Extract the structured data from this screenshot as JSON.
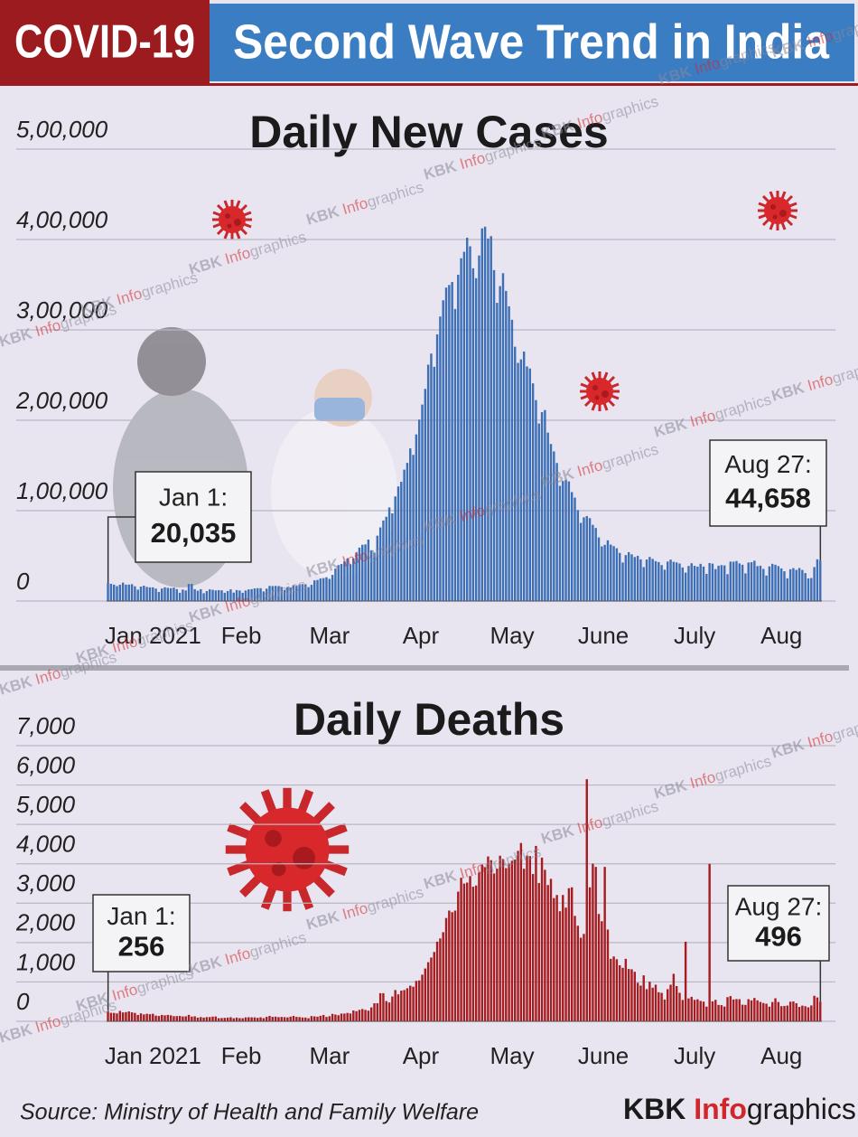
{
  "header": {
    "tag": "COVID-19",
    "title": "Second Wave Trend in India"
  },
  "chart_data": [
    {
      "type": "bar",
      "title": "Daily New Cases",
      "color": "#3d6fb6",
      "grid": true,
      "ylim": [
        0,
        500000
      ],
      "yticks": [
        0,
        {
          "value": 100000,
          "label": "1,00,000"
        },
        {
          "value": 200000,
          "label": "2,00,000"
        },
        {
          "value": 300000,
          "label": "3,00,000"
        },
        {
          "value": 400000,
          "label": "4,00,000"
        },
        {
          "value": 500000,
          "label": "5,00,000"
        }
      ],
      "categories": [
        "Jan 2021",
        null,
        null,
        null,
        null,
        null,
        null,
        null,
        null,
        null,
        null,
        null,
        null,
        null,
        null,
        null,
        null,
        null,
        null,
        null,
        null,
        null,
        null,
        null,
        null,
        null,
        null,
        null,
        null,
        null,
        null,
        "Feb",
        null,
        null,
        null,
        null,
        null,
        null,
        null,
        null,
        null,
        null,
        null,
        null,
        null,
        null,
        null,
        null,
        null,
        null,
        null,
        null,
        null,
        null,
        null,
        null,
        null,
        null,
        null,
        "Mar",
        null,
        null,
        null,
        null,
        null,
        null,
        null,
        null,
        null,
        null,
        null,
        null,
        null,
        null,
        null,
        null,
        null,
        null,
        null,
        null,
        null,
        null,
        null,
        null,
        null,
        null,
        null,
        null,
        null,
        null,
        "Apr",
        null,
        null,
        null,
        null,
        null,
        null,
        null,
        null,
        null,
        null,
        null,
        null,
        null,
        null,
        null,
        null,
        null,
        null,
        null,
        null,
        null,
        null,
        null,
        null,
        null,
        null,
        null,
        null,
        null,
        "May",
        null,
        null,
        null,
        null,
        null,
        null,
        null,
        null,
        null,
        null,
        null,
        null,
        null,
        null,
        null,
        null,
        null,
        null,
        null,
        null,
        null,
        null,
        null,
        null,
        null,
        null,
        null,
        null,
        null,
        null,
        "June",
        null,
        null,
        null,
        null,
        null,
        null,
        null,
        null,
        null,
        null,
        null,
        null,
        null,
        null,
        null,
        null,
        null,
        null,
        null,
        null,
        null,
        null,
        null,
        null,
        null,
        null,
        null,
        null,
        null,
        "July",
        null,
        null,
        null,
        null,
        null,
        null,
        null,
        null,
        null,
        null,
        null,
        null,
        null,
        null,
        null,
        null,
        null,
        null,
        null,
        null,
        null,
        null,
        null,
        null,
        null,
        null,
        null,
        null,
        null,
        null,
        "Aug",
        null,
        null,
        null,
        null,
        null,
        null,
        null,
        null,
        null,
        null,
        null,
        null,
        null,
        null,
        null,
        null,
        null,
        null,
        null,
        null,
        null,
        null,
        null,
        null,
        null,
        null
      ],
      "values": [
        20035,
        19078,
        18177,
        16504,
        18088,
        20346,
        18139,
        18222,
        18645,
        16311,
        12584,
        15968,
        16946,
        15590,
        15158,
        15144,
        13788,
        10064,
        13823,
        15223,
        14545,
        14256,
        14849,
        13203,
        9102,
        12689,
        11666,
        18855,
        18855,
        13083,
        11427,
        13052,
        8635,
        11039,
        12899,
        12408,
        11713,
        12059,
        11831,
        9110,
        11067,
        12923,
        9309,
        12143,
        11649,
        9121,
        11610,
        12881,
        13193,
        13993,
        14264,
        14199,
        10584,
        13742,
        16738,
        16577,
        16752,
        16488,
        15510,
        12286,
        15510,
        14989,
        17407,
        16838,
        18327,
        18711,
        18599,
        15388,
        17921,
        22854,
        23285,
        24882,
        25320,
        26291,
        24492,
        28903,
        35871,
        39726,
        40953,
        43846,
        46951,
        40715,
        47262,
        53476,
        59118,
        62258,
        62714,
        68020,
        56211,
        53480,
        72330,
        81466,
        89129,
        93249,
        103558,
        96982,
        115736,
        126789,
        131968,
        145384,
        152879,
        168912,
        161736,
        184372,
        200739,
        217353,
        234692,
        261500,
        273810,
        259170,
        295041,
        314835,
        332730,
        346786,
        349691,
        352991,
        323144,
        360960,
        379257,
        386452,
        401993,
        392488,
        368147,
        357229,
        382315,
        412262,
        414188,
        401078,
        403738,
        366161,
        329942,
        348421,
        362727,
        343144,
        326098,
        311170,
        281386,
        263533,
        267334,
        276070,
        259551,
        257299,
        240842,
        222315,
        196427,
        208921,
        211298,
        186364,
        173790,
        165553,
        152734,
        127510,
        132788,
        134154,
        132364,
        120529,
        114460,
        100636,
        86498,
        92596,
        94052,
        91702,
        84332,
        80834,
        70421,
        60471,
        62224,
        67208,
        62480,
        60753,
        58419,
        53256,
        42640,
        50848,
        54069,
        51667,
        48698,
        50040,
        46148,
        37566,
        45951,
        48786,
        46617,
        44111,
        43071,
        39796,
        34703,
        43733,
        45892,
        43393,
        42766,
        41506,
        37154,
        31443,
        38792,
        41806,
        38949,
        38079,
        41157,
        38164,
        30093,
        42015,
        41383,
        35342,
        39097,
        39742,
        39361,
        29689,
        43654,
        43509,
        44230,
        41649,
        40134,
        30549,
        42625,
        42982,
        44643,
        38628,
        39070,
        35499,
        28204,
        38353,
        41195,
        40120,
        38667,
        36083,
        32937,
        25166,
        35178,
        36401,
        34457,
        36571,
        34457,
        30948,
        25072,
        25467,
        37593,
        46164,
        44658
      ],
      "annotations": [
        {
          "date": "Jan 1:",
          "value_label": "20,035"
        },
        {
          "date": "Aug 27:",
          "value_label": "44,658"
        }
      ]
    },
    {
      "type": "bar",
      "title": "Daily Deaths",
      "color": "#a51d20",
      "grid": true,
      "ylim": [
        0,
        7000
      ],
      "yticks": [
        0,
        {
          "value": 1000,
          "label": "1,000"
        },
        {
          "value": 2000,
          "label": "2,000"
        },
        {
          "value": 3000,
          "label": "3,000"
        },
        {
          "value": 4000,
          "label": "4,000"
        },
        {
          "value": 5000,
          "label": "5,000"
        },
        {
          "value": 6000,
          "label": "6,000"
        },
        {
          "value": 7000,
          "label": "7,000"
        }
      ],
      "categories": [
        "Jan 2021",
        null,
        null,
        null,
        null,
        null,
        null,
        null,
        null,
        null,
        null,
        null,
        null,
        null,
        null,
        null,
        null,
        null,
        null,
        null,
        null,
        null,
        null,
        null,
        null,
        null,
        null,
        null,
        null,
        null,
        null,
        "Feb",
        null,
        null,
        null,
        null,
        null,
        null,
        null,
        null,
        null,
        null,
        null,
        null,
        null,
        null,
        null,
        null,
        null,
        null,
        null,
        null,
        null,
        null,
        null,
        null,
        null,
        null,
        null,
        "Mar",
        null,
        null,
        null,
        null,
        null,
        null,
        null,
        null,
        null,
        null,
        null,
        null,
        null,
        null,
        null,
        null,
        null,
        null,
        null,
        null,
        null,
        null,
        null,
        null,
        null,
        null,
        null,
        null,
        null,
        null,
        "Apr",
        null,
        null,
        null,
        null,
        null,
        null,
        null,
        null,
        null,
        null,
        null,
        null,
        null,
        null,
        null,
        null,
        null,
        null,
        null,
        null,
        null,
        null,
        null,
        null,
        null,
        null,
        null,
        null,
        null,
        "May",
        null,
        null,
        null,
        null,
        null,
        null,
        null,
        null,
        null,
        null,
        null,
        null,
        null,
        null,
        null,
        null,
        null,
        null,
        null,
        null,
        null,
        null,
        null,
        null,
        null,
        null,
        null,
        null,
        null,
        null,
        "June",
        null,
        null,
        null,
        null,
        null,
        null,
        null,
        null,
        null,
        null,
        null,
        null,
        null,
        null,
        null,
        null,
        null,
        null,
        null,
        null,
        null,
        null,
        null,
        null,
        null,
        null,
        null,
        null,
        null,
        "July",
        null,
        null,
        null,
        null,
        null,
        null,
        null,
        null,
        null,
        null,
        null,
        null,
        null,
        null,
        null,
        null,
        null,
        null,
        null,
        null,
        null,
        null,
        null,
        null,
        null,
        null,
        null,
        null,
        null,
        null,
        "Aug",
        null,
        null,
        null,
        null,
        null,
        null,
        null,
        null,
        null,
        null,
        null,
        null,
        null,
        null,
        null,
        null,
        null,
        null,
        null,
        null,
        null,
        null,
        null,
        null,
        null,
        null
      ],
      "values": [
        256,
        217,
        214,
        201,
        264,
        226,
        234,
        251,
        228,
        214,
        161,
        202,
        175,
        191,
        181,
        192,
        145,
        137,
        162,
        152,
        163,
        152,
        131,
        133,
        137,
        123,
        127,
        163,
        120,
        127,
        94,
        107,
        94,
        107,
        107,
        120,
        123,
        80,
        84,
        87,
        94,
        104,
        78,
        95,
        81,
        78,
        100,
        104,
        101,
        101,
        89,
        101,
        80,
        113,
        138,
        113,
        118,
        106,
        111,
        106,
        99,
        117,
        138,
        113,
        108,
        97,
        96,
        77,
        133,
        126,
        117,
        140,
        161,
        112,
        131,
        188,
        172,
        154,
        197,
        197,
        213,
        199,
        275,
        257,
        291,
        312,
        291,
        271,
        354,
        458,
        459,
        714,
        714,
        513,
        478,
        630,
        794,
        685,
        780,
        794,
        839,
        904,
        879,
        1027,
        1038,
        1185,
        1341,
        1501,
        1619,
        1761,
        2023,
        2104,
        2263,
        2624,
        2812,
        2771,
        2812,
        3293,
        3645,
        3498,
        3523,
        3689,
        3417,
        3449,
        3780,
        3980,
        3915,
        4187,
        4092,
        3754,
        3876,
        4205,
        4120,
        3890,
        4000,
        4077,
        4106,
        4329,
        4529,
        3874,
        4209,
        4194,
        3741,
        4454,
        3511,
        4157,
        3847,
        3460,
        3617,
        3128,
        3207,
        2795,
        3207,
        2887,
        3380,
        3403,
        2677,
        2427,
        2123,
        2219,
        6148,
        3403,
        4002,
        3921,
        2726,
        2542,
        3921,
        2330,
        1587,
        1647,
        1576,
        1422,
        1358,
        1587,
        1329,
        1321,
        1258,
        979,
        907,
        1167,
        817,
        1005,
        853,
        930,
        738,
        723,
        553,
        817,
        930,
        1206,
        895,
        724,
        542,
        2020,
        581,
        622,
        546,
        560,
        518,
        499,
        374,
        3998,
        507,
        546,
        416,
        411,
        375,
        614,
        640,
        555,
        565,
        562,
        422,
        417,
        562,
        533,
        593,
        533,
        492,
        464,
        447,
        373,
        490,
        585,
        491,
        384,
        389,
        400,
        498,
        505,
        460,
        366,
        399,
        383,
        355,
        403,
        648,
        605,
        496
      ],
      "annotations": [
        {
          "date": "Jan 1:",
          "value_label": "256"
        },
        {
          "date": "Aug 27:",
          "value_label": "496"
        }
      ]
    }
  ],
  "source": "Source: Ministry of Health and Family Welfare",
  "brand": [
    "KBK ",
    "Info",
    "graphics"
  ]
}
